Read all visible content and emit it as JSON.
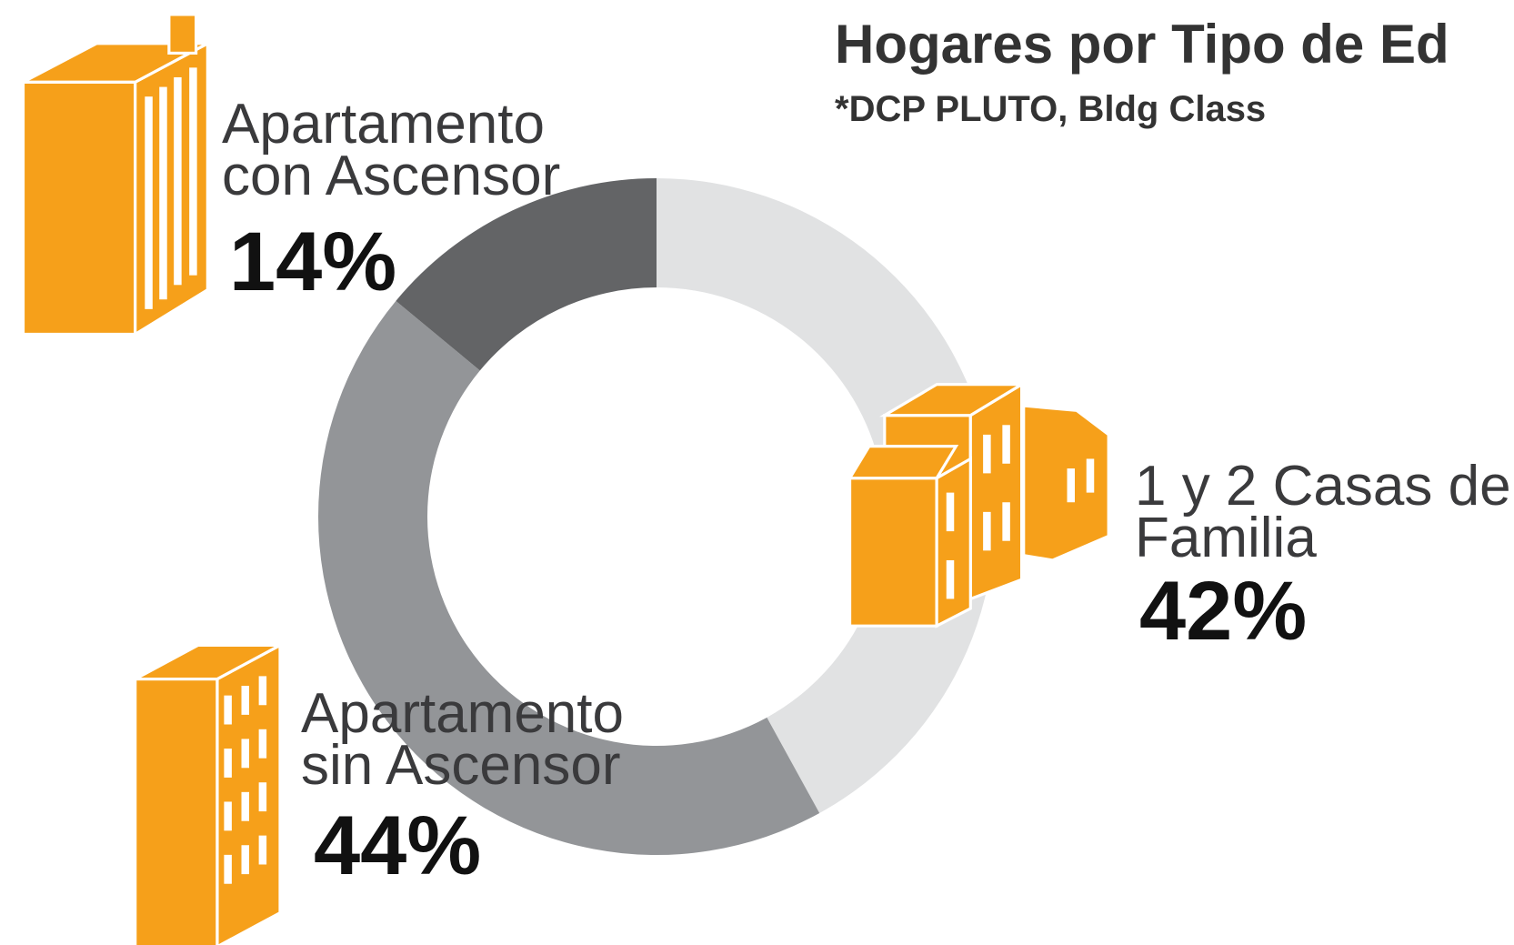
{
  "chart_data": {
    "type": "donut",
    "title": "Hogares por Tipo de Ed",
    "subtitle": "*DCP PLUTO, Bldg Class",
    "categories": [
      "1 y 2 Casas de Familia",
      "Apartamento sin Ascensor",
      "Apartamento con Ascensor"
    ],
    "values": [
      42,
      44,
      14
    ],
    "value_labels": [
      "42%",
      "44%",
      "14%"
    ],
    "colors": [
      "#e1e2e3",
      "#939598",
      "#636466"
    ]
  }
}
